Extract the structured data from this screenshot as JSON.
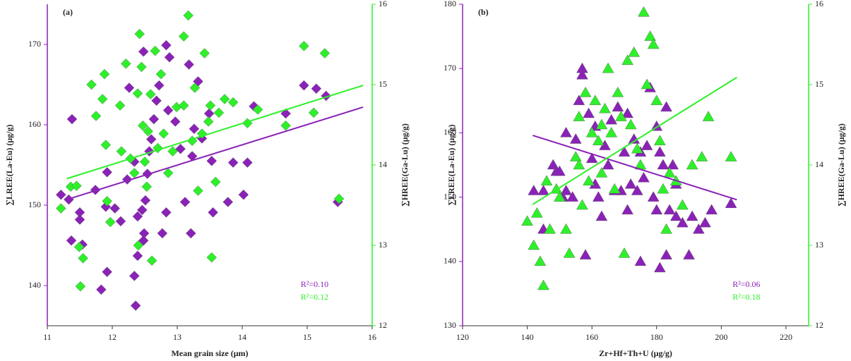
{
  "chart_data": [
    {
      "type": "scatter",
      "panel_label": "(a)",
      "marker": "diamond",
      "xlabel": "Mean grain size (μm)",
      "ylabel": "∑LREE(La-Eu) (μg/g)",
      "y2label": "∑HREE(Ga-Lu) (μg/g)",
      "xlim": [
        11,
        16
      ],
      "xticks": [
        11,
        12,
        13,
        14,
        15,
        16
      ],
      "ylim": [
        135,
        175
      ],
      "yticks": [
        140,
        150,
        160,
        170
      ],
      "y2lim": [
        12,
        16
      ],
      "y2ticks": [
        12,
        13,
        14,
        15,
        16
      ],
      "series": [
        {
          "color": "#8b22b8",
          "x": [
            11.38,
            11.21,
            11.33,
            11.5,
            11.5,
            11.37,
            11.54,
            11.83,
            11.92,
            11.74,
            11.92,
            11.9,
            12.04,
            12.13,
            12.23,
            12.26,
            12.34,
            12.39,
            12.46,
            12.49,
            12.36,
            12.34,
            12.39,
            12.48,
            12.51,
            12.54,
            12.57,
            12.6,
            12.64,
            12.68,
            12.48,
            12.72,
            12.77,
            12.83,
            12.86,
            12.83,
            12.88,
            12.97,
            13.05,
            13.12,
            13.23,
            13.26,
            13.18,
            13.32,
            13.38,
            13.49,
            13.53,
            13.55,
            13.21,
            13.78,
            13.86,
            14.02,
            14.08,
            14.18,
            14.67,
            14.95,
            15.14,
            15.29,
            15.47
          ],
          "values": [
            160.7,
            151.3,
            150.7,
            149.1,
            148.2,
            145.6,
            145.1,
            139.5,
            141.7,
            151.9,
            154.1,
            149.8,
            149.6,
            148.0,
            153.2,
            164.6,
            155.4,
            148.6,
            149.4,
            146.5,
            137.5,
            141.2,
            143.7,
            145.6,
            150.6,
            153.9,
            156.7,
            158.2,
            160.7,
            163.0,
            169.1,
            164.9,
            146.5,
            149.1,
            161.8,
            169.9,
            168.4,
            160.4,
            157.0,
            150.4,
            156.1,
            159.5,
            167.5,
            165.4,
            158.3,
            161.4,
            155.5,
            149.1,
            146.5,
            150.4,
            155.3,
            151.3,
            155.3,
            162.3,
            161.4,
            164.9,
            164.5,
            163.6,
            150.4
          ]
        },
        {
          "color": "#2ef02a",
          "axis": "y2",
          "x": [
            11.36,
            11.21,
            11.45,
            11.49,
            11.55,
            11.51,
            11.68,
            11.88,
            11.85,
            11.75,
            11.9,
            11.92,
            11.97,
            12.12,
            12.14,
            12.21,
            12.28,
            12.34,
            12.39,
            12.42,
            12.4,
            12.45,
            12.47,
            12.5,
            12.53,
            12.55,
            12.59,
            12.61,
            12.66,
            12.7,
            12.75,
            12.79,
            12.86,
            12.93,
            12.99,
            13.1,
            13.1,
            13.17,
            13.23,
            13.27,
            13.32,
            13.38,
            13.42,
            13.48,
            13.51,
            13.53,
            13.59,
            13.64,
            13.73,
            13.86,
            14.08,
            14.24,
            14.67,
            14.95,
            15.1,
            15.27,
            15.49
          ],
          "values": [
            13.73,
            13.46,
            13.74,
            12.98,
            12.84,
            12.49,
            15.0,
            15.13,
            14.82,
            14.61,
            14.25,
            13.55,
            13.29,
            14.74,
            14.17,
            15.26,
            14.08,
            13.9,
            14.89,
            15.63,
            13.0,
            15.22,
            14.49,
            14.04,
            13.73,
            14.42,
            14.88,
            12.81,
            15.42,
            14.21,
            15.13,
            14.39,
            13.9,
            14.17,
            14.72,
            14.74,
            15.6,
            15.86,
            14.3,
            14.96,
            13.68,
            14.39,
            15.39,
            14.54,
            14.74,
            12.85,
            13.79,
            14.65,
            14.82,
            14.78,
            14.52,
            14.69,
            14.49,
            15.48,
            14.65,
            15.39,
            13.58
          ]
        }
      ],
      "trend_lines": [
        {
          "color": "#8b22b8",
          "x": [
            11.3,
            15.86
          ],
          "values": [
            150.7,
            162.2
          ]
        },
        {
          "color": "#2ef02a",
          "axis": "y2",
          "x": [
            11.3,
            15.86
          ],
          "values": [
            13.83,
            14.99
          ]
        }
      ],
      "annotations": [
        {
          "text": "R²=0.10",
          "color": "#8b22b8"
        },
        {
          "text": "R²=0.12",
          "color": "#2ef02a"
        }
      ]
    },
    {
      "type": "scatter",
      "panel_label": "(b)",
      "marker": "triangle",
      "xlabel": "Zr+Hf+Th+U (μg/g)",
      "ylabel": "∑LREE(La-Eu) (μg/g)",
      "y2label": "∑HREE(Ga-Lu) (μg/g)",
      "xlim": [
        120,
        227
      ],
      "xticks": [
        120,
        140,
        160,
        180,
        200,
        220
      ],
      "ylim": [
        130,
        180
      ],
      "yticks": [
        130,
        140,
        150,
        160,
        170,
        180
      ],
      "y2lim": [
        12,
        16
      ],
      "y2ticks": [
        12,
        13,
        14,
        15,
        16
      ],
      "series": [
        {
          "color": "#8b22b8",
          "x": [
            142,
            145,
            148,
            149,
            150,
            152,
            145,
            151,
            152,
            154,
            155,
            156,
            157,
            157,
            158,
            159,
            160,
            161,
            161,
            162,
            163,
            164,
            165,
            166,
            167,
            168,
            169,
            170,
            171,
            171,
            172,
            173,
            174,
            175,
            175,
            176,
            177,
            178,
            179,
            180,
            180,
            181,
            182,
            183,
            184,
            185,
            186,
            186,
            188,
            190,
            191,
            193,
            195,
            197,
            203,
            181,
            183
          ],
          "values": [
            151,
            151,
            155,
            154,
            154,
            160,
            145,
            150,
            151,
            150,
            159,
            165,
            170,
            169,
            141,
            163,
            156,
            161,
            152,
            150,
            147,
            158,
            155,
            162,
            151,
            164,
            151,
            157,
            148,
            163,
            152,
            159,
            151,
            140,
            157,
            153,
            158,
            167,
            150,
            161,
            148,
            157,
            155,
            164,
            148,
            155,
            152,
            147,
            146,
            141,
            147,
            145,
            146,
            148,
            149,
            139,
            141
          ]
        },
        {
          "color": "#2ef02a",
          "axis": "y2",
          "x": [
            140,
            142,
            143,
            144,
            145,
            146,
            147,
            149,
            150,
            152,
            153,
            155,
            156,
            156,
            157,
            158,
            159,
            160,
            161,
            162,
            163,
            163,
            164,
            165,
            166,
            167,
            168,
            169,
            170,
            171,
            172,
            173,
            174,
            175,
            176,
            177,
            178,
            179,
            180,
            181,
            182,
            183,
            184,
            186,
            188,
            191,
            194,
            196,
            203
          ],
          "values": [
            13.3,
            13.0,
            13.4,
            12.8,
            12.5,
            13.8,
            13.2,
            13.7,
            13.6,
            13.2,
            12.9,
            14.1,
            14.6,
            14.0,
            13.5,
            14.9,
            13.8,
            14.4,
            14.8,
            14.3,
            14.5,
            13.9,
            14.7,
            15.2,
            14.4,
            13.7,
            14.9,
            14.6,
            12.9,
            15.3,
            14.5,
            15.4,
            14.2,
            14.0,
            15.9,
            15.0,
            15.6,
            15.5,
            14.8,
            14.3,
            13.7,
            13.2,
            13.9,
            13.8,
            13.5,
            14.0,
            14.1,
            14.6,
            14.1
          ]
        }
      ],
      "trend_lines": [
        {
          "color": "#8b22b8",
          "x": [
            141.7,
            204.8
          ],
          "values": [
            159.6,
            149.6
          ]
        },
        {
          "color": "#2ef02a",
          "axis": "y2",
          "x": [
            141.7,
            204.8
          ],
          "values": [
            13.51,
            15.09
          ]
        }
      ],
      "annotations": [
        {
          "text": "R²=0.06",
          "color": "#8b22b8"
        },
        {
          "text": "R²=0.18",
          "color": "#2ef02a"
        }
      ]
    }
  ]
}
